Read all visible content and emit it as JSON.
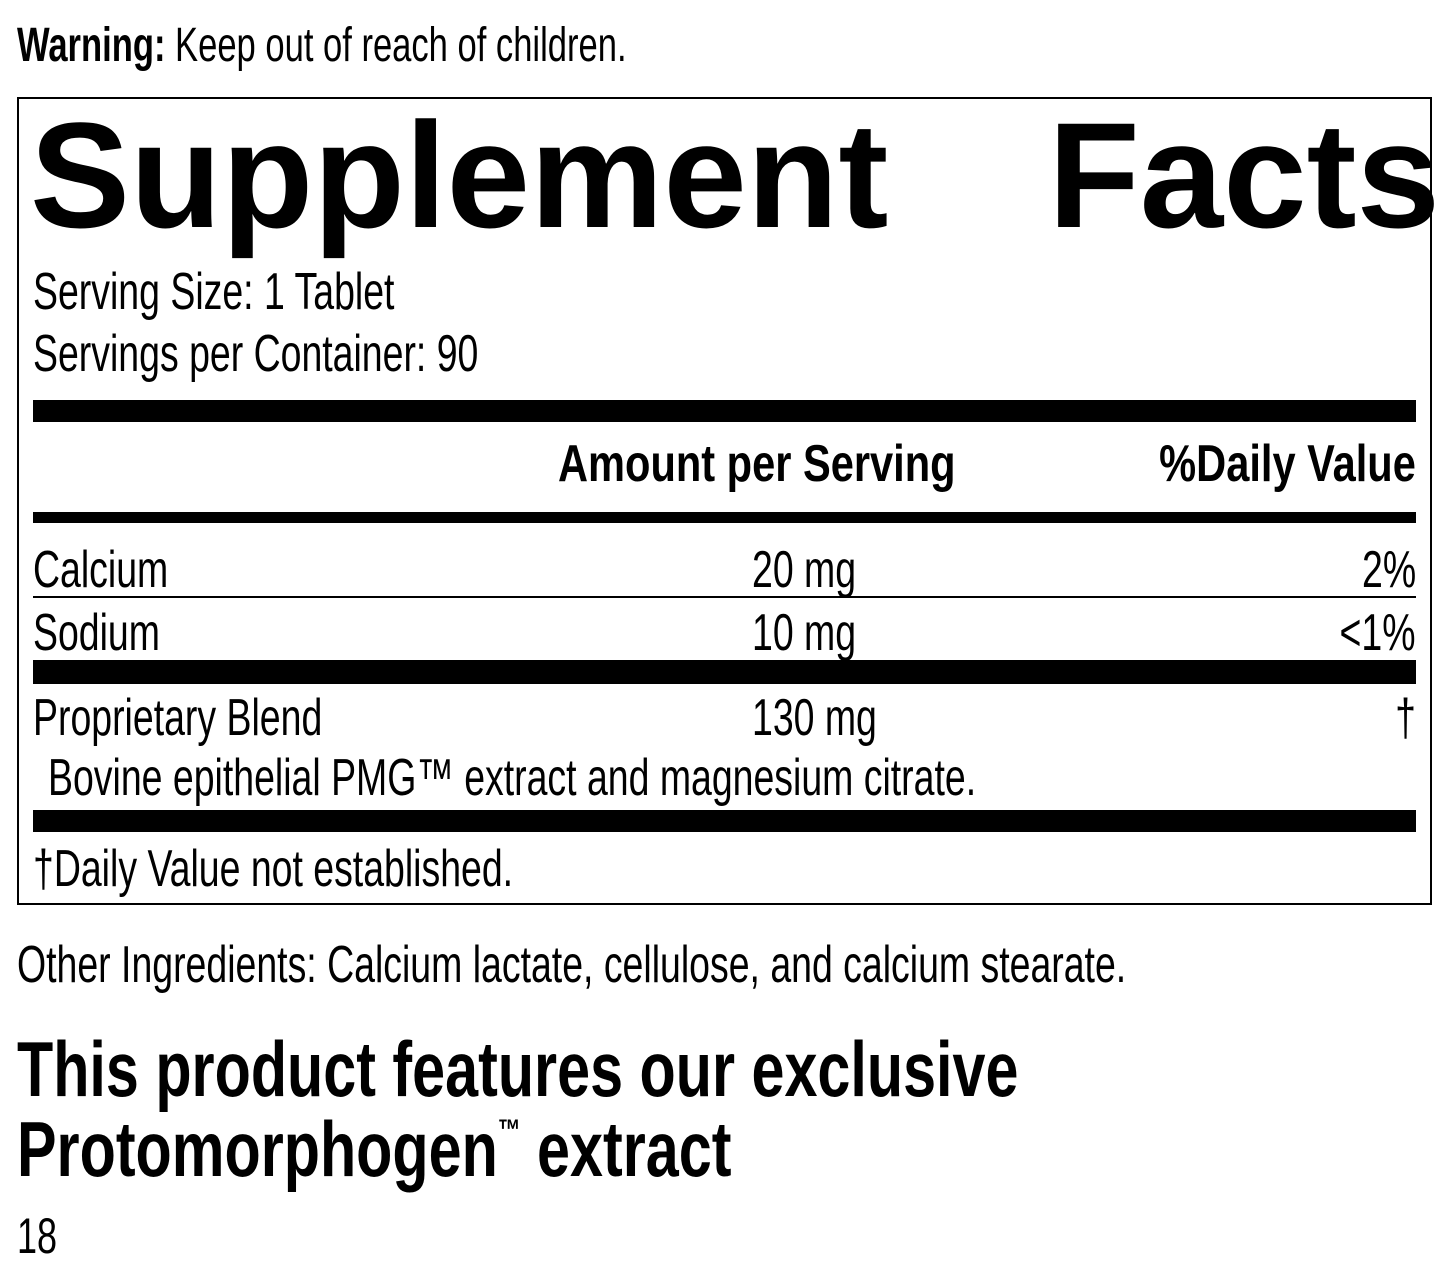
{
  "warning": {
    "label": "Warning:",
    "text": " Keep out of reach of children."
  },
  "facts": {
    "title_left": "Supplement",
    "title_right": "Facts",
    "serving_size": "Serving Size: 1 Tablet",
    "servings_per_container": "Servings per Container: 90",
    "headers": {
      "amount": "Amount per Serving",
      "dv": "%Daily Value"
    },
    "rows": [
      {
        "name": "Calcium",
        "amount": "20 mg",
        "dv": "2%"
      },
      {
        "name": "Sodium",
        "amount": "10 mg",
        "dv": "<1%"
      },
      {
        "name": "Proprietary Blend",
        "amount": "130 mg",
        "dv": "†"
      }
    ],
    "blend_detail": "Bovine epithelial PMG™ extract and magnesium citrate.",
    "footnote": "†Daily Value not established."
  },
  "other_ingredients": "Other Ingredients: Calcium lactate, cellulose, and calcium stearate.",
  "feature": {
    "line1": "This product features our exclusive",
    "line2a": "Protomorphogen",
    "tm": "™",
    "line2b": " extract"
  },
  "page_number": "18"
}
